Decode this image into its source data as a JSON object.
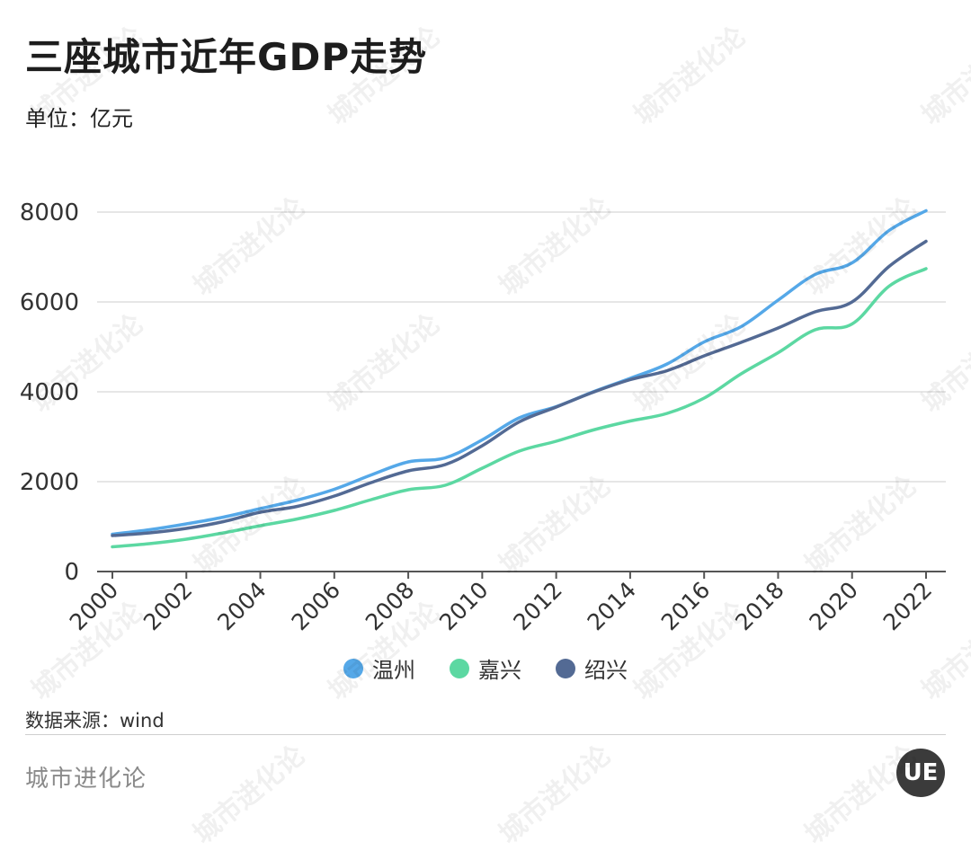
{
  "title": "三座城市近年GDP走势",
  "unit_label": "单位：亿元",
  "source_label": "数据来源：wind",
  "brand": "城市进化论",
  "logo_text": "UE",
  "watermark_text": "城市进化论",
  "colors": {
    "wenzhou": "#55a8e8",
    "jiaxing": "#5cd8a2",
    "shaoxing": "#536a94",
    "grid": "#dddddd",
    "axis": "#555555"
  },
  "chart_data": {
    "type": "line",
    "title": "三座城市近年GDP走势",
    "xlabel": "",
    "ylabel": "单位：亿元",
    "ylim": [
      0,
      8000
    ],
    "yticks": [
      0,
      2000,
      4000,
      6000,
      8000
    ],
    "xticks": [
      2000,
      2002,
      2004,
      2006,
      2008,
      2010,
      2012,
      2014,
      2016,
      2018,
      2020,
      2022
    ],
    "grid": true,
    "legend_position": "bottom",
    "x": [
      2000,
      2001,
      2002,
      2003,
      2004,
      2005,
      2006,
      2007,
      2008,
      2009,
      2010,
      2011,
      2012,
      2013,
      2014,
      2015,
      2016,
      2017,
      2018,
      2019,
      2020,
      2021,
      2022
    ],
    "series": [
      {
        "name": "温州",
        "color_key": "wenzhou",
        "values": [
          830,
          930,
          1060,
          1210,
          1400,
          1590,
          1830,
          2150,
          2440,
          2530,
          2930,
          3420,
          3670,
          4000,
          4300,
          4620,
          5110,
          5450,
          6040,
          6610,
          6870,
          7590,
          8030
        ]
      },
      {
        "name": "嘉兴",
        "color_key": "jiaxing",
        "values": [
          550,
          620,
          720,
          860,
          1020,
          1170,
          1360,
          1600,
          1820,
          1920,
          2300,
          2680,
          2900,
          3150,
          3350,
          3520,
          3860,
          4400,
          4870,
          5380,
          5510,
          6350,
          6740
        ]
      },
      {
        "name": "绍兴",
        "color_key": "shaoxing",
        "values": [
          800,
          860,
          960,
          1110,
          1320,
          1450,
          1680,
          1980,
          2240,
          2380,
          2800,
          3330,
          3660,
          3990,
          4270,
          4470,
          4800,
          5100,
          5420,
          5780,
          6000,
          6790,
          7350
        ]
      }
    ]
  }
}
